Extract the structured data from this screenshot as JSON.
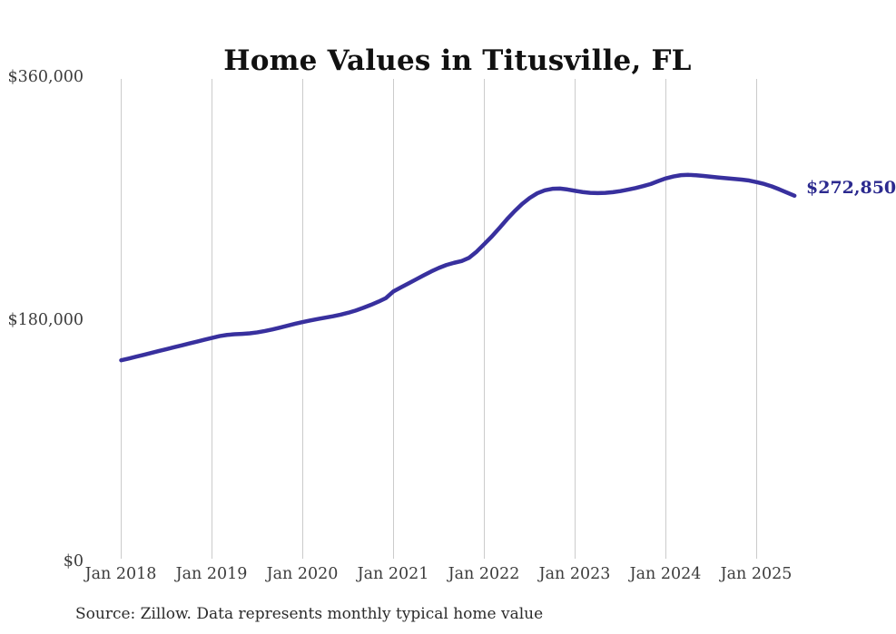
{
  "title": "Home Values in Titusville, FL",
  "source_note": "Source: Zillow. Data represents monthly typical home value",
  "colors": {
    "line": "#38309e",
    "end_label": "#2c2a8f",
    "gridline": "#cbcbcb",
    "axis_text": "#3c3c3c",
    "title_text": "#111111",
    "source_text": "#2b2b2b",
    "background": "#ffffff"
  },
  "chart_data": {
    "type": "line",
    "title": "Home Values in Titusville, FL",
    "xlabel": "",
    "ylabel": "",
    "x_tick_labels": [
      "Jan 2018",
      "Jan 2019",
      "Jan 2020",
      "Jan 2021",
      "Jan 2022",
      "Jan 2023",
      "Jan 2024",
      "Jan 2025"
    ],
    "y_tick_labels": [
      "$360,000",
      "$180,000",
      "$0"
    ],
    "ylim": [
      0,
      360000
    ],
    "grid": "vertical-only",
    "legend": "none",
    "interval": "monthly",
    "x_start": "Jan 2018",
    "x_end": "Jun 2025",
    "end_annotation": {
      "label": "$272,850",
      "value": 272850
    },
    "series": [
      {
        "name": "Typical home value",
        "values": [
          150100,
          151400,
          152800,
          154200,
          155600,
          157000,
          158400,
          159800,
          161200,
          162600,
          164000,
          165400,
          166800,
          168100,
          169000,
          169500,
          169800,
          170200,
          170900,
          171900,
          173100,
          174500,
          175900,
          177300,
          178600,
          179800,
          180900,
          181900,
          182900,
          184100,
          185500,
          187200,
          189200,
          191400,
          193800,
          196500,
          201500,
          204500,
          207500,
          210500,
          213500,
          216400,
          219000,
          221200,
          222800,
          224100,
          226600,
          231200,
          236800,
          242500,
          248800,
          255300,
          261300,
          266700,
          271200,
          274700,
          276900,
          278000,
          278200,
          277500,
          276500,
          275600,
          275000,
          274800,
          275000,
          275500,
          276300,
          277400,
          278600,
          280000,
          281600,
          283800,
          285800,
          287200,
          288200,
          288400,
          288100,
          287600,
          287000,
          286400,
          285900,
          285400,
          284900,
          284200,
          283000,
          281600,
          279800,
          277600,
          275200,
          272850
        ]
      }
    ]
  }
}
